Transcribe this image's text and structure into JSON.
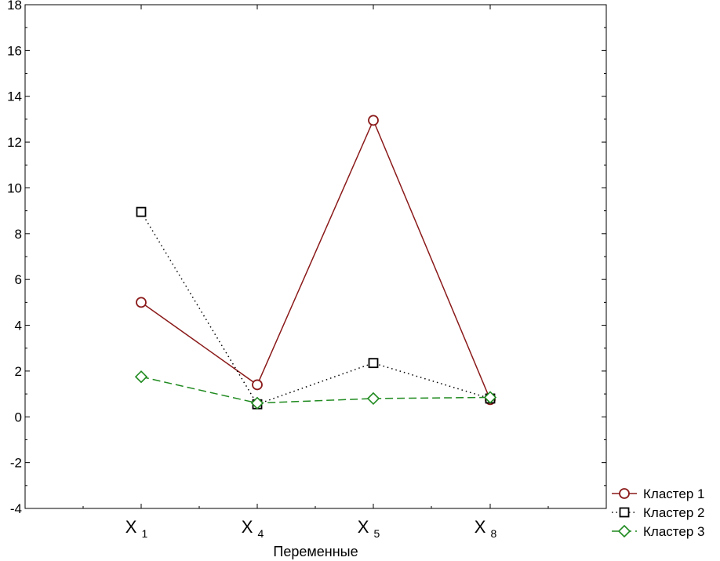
{
  "chart_data": {
    "type": "line",
    "categories": [
      {
        "main": "X",
        "sub": "1"
      },
      {
        "main": "X",
        "sub": "4"
      },
      {
        "main": "X",
        "sub": "5"
      },
      {
        "main": "X",
        "sub": "8"
      }
    ],
    "xlabel": "Переменные",
    "ylabel": "",
    "ylim": [
      -4,
      18
    ],
    "yticks": [
      -4,
      -2,
      0,
      2,
      4,
      6,
      8,
      10,
      12,
      14,
      16,
      18
    ],
    "grid": false,
    "legend_position": "bottom-right (outside plot)",
    "series": [
      {
        "name": "Кластер  1",
        "values": [
          5.0,
          1.4,
          12.95,
          0.75
        ],
        "color": "#8b1a1a",
        "marker": "circle",
        "line": "solid"
      },
      {
        "name": "Кластер  2",
        "values": [
          8.95,
          0.55,
          2.35,
          0.8
        ],
        "color": "#000000",
        "marker": "square",
        "line": "dotted"
      },
      {
        "name": "Кластер  3",
        "values": [
          1.75,
          0.6,
          0.8,
          0.85
        ],
        "color": "#1f8a1f",
        "marker": "diamond",
        "line": "dashed"
      }
    ]
  }
}
